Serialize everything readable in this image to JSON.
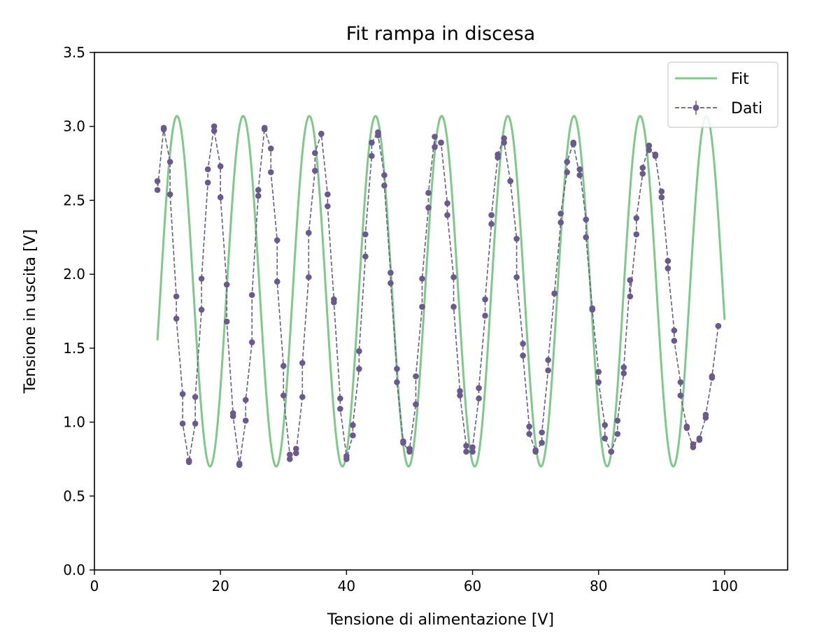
{
  "chart_data": {
    "type": "line",
    "title": "Fit rampa in discesa",
    "xlabel": "Tensione di alimentazione [V]",
    "ylabel": "Tensione in uscita [V]",
    "xlim": [
      0,
      110
    ],
    "ylim": [
      0,
      3.5
    ],
    "xticks": [
      "0",
      "20",
      "40",
      "60",
      "80",
      "100"
    ],
    "yticks": [
      "0.0",
      "0.5",
      "1.0",
      "1.5",
      "2.0",
      "2.5",
      "3.0",
      "3.5"
    ],
    "grid": false,
    "legend_position": "top-right",
    "fit_model": {
      "domain": [
        10,
        100
      ],
      "offset": 1.885,
      "amplitude": 1.185,
      "period": 10.5,
      "peak_x": 13.1
    },
    "series": [
      {
        "name": "Fit",
        "style": "solid",
        "color": "#7fc88a"
      },
      {
        "name": "Dati",
        "style": "dashed-markers",
        "color": "#6a5a8c",
        "points": [
          [
            10,
            2.63
          ],
          [
            10,
            2.57
          ],
          [
            11,
            2.99
          ],
          [
            11,
            2.98
          ],
          [
            12,
            2.76
          ],
          [
            12,
            2.54
          ],
          [
            13,
            1.85
          ],
          [
            13,
            1.7
          ],
          [
            14,
            1.19
          ],
          [
            14,
            0.99
          ],
          [
            15,
            0.73
          ],
          [
            15,
            0.74
          ],
          [
            16,
            0.99
          ],
          [
            16,
            1.17
          ],
          [
            17,
            1.76
          ],
          [
            17,
            1.97
          ],
          [
            18,
            2.62
          ],
          [
            18,
            2.71
          ],
          [
            19,
            3.0
          ],
          [
            19,
            2.97
          ],
          [
            20,
            2.73
          ],
          [
            20,
            2.52
          ],
          [
            21,
            1.93
          ],
          [
            21,
            1.68
          ],
          [
            22,
            1.06
          ],
          [
            22,
            1.04
          ],
          [
            23,
            0.72
          ],
          [
            23,
            0.71
          ],
          [
            24,
            1.01
          ],
          [
            24,
            1.15
          ],
          [
            25,
            1.54
          ],
          [
            25,
            1.86
          ],
          [
            26,
            2.53
          ],
          [
            26,
            2.57
          ],
          [
            27,
            2.99
          ],
          [
            27,
            2.98
          ],
          [
            28,
            2.85
          ],
          [
            28,
            2.69
          ],
          [
            29,
            2.23
          ],
          [
            29,
            1.95
          ],
          [
            30,
            1.38
          ],
          [
            30,
            1.18
          ],
          [
            31,
            0.78
          ],
          [
            31,
            0.75
          ],
          [
            32,
            0.82
          ],
          [
            32,
            0.79
          ],
          [
            33,
            1.17
          ],
          [
            33,
            1.4
          ],
          [
            34,
            1.98
          ],
          [
            34,
            2.28
          ],
          [
            35,
            2.7
          ],
          [
            35,
            2.82
          ],
          [
            36,
            2.95
          ],
          [
            36,
            2.95
          ],
          [
            37,
            2.54
          ],
          [
            37,
            2.46
          ],
          [
            38,
            1.83
          ],
          [
            38,
            1.81
          ],
          [
            39,
            1.16
          ],
          [
            39,
            1.09
          ],
          [
            40,
            0.77
          ],
          [
            40,
            0.75
          ],
          [
            41,
            0.91
          ],
          [
            41,
            0.98
          ],
          [
            42,
            1.36
          ],
          [
            42,
            1.48
          ],
          [
            43,
            2.12
          ],
          [
            43,
            2.27
          ],
          [
            44,
            2.8
          ],
          [
            44,
            2.89
          ],
          [
            45,
            2.96
          ],
          [
            45,
            2.94
          ],
          [
            46,
            2.67
          ],
          [
            46,
            2.6
          ],
          [
            47,
            2.01
          ],
          [
            47,
            1.94
          ],
          [
            48,
            1.36
          ],
          [
            48,
            1.27
          ],
          [
            49,
            0.87
          ],
          [
            49,
            0.86
          ],
          [
            50,
            0.8
          ],
          [
            50,
            0.82
          ],
          [
            51,
            1.12
          ],
          [
            51,
            1.31
          ],
          [
            52,
            1.78
          ],
          [
            52,
            1.97
          ],
          [
            53,
            2.45
          ],
          [
            53,
            2.55
          ],
          [
            54,
            2.93
          ],
          [
            54,
            2.86
          ],
          [
            55,
            2.89
          ],
          [
            55,
            2.89
          ],
          [
            56,
            2.48
          ],
          [
            56,
            2.4
          ],
          [
            57,
            1.98
          ],
          [
            57,
            1.78
          ],
          [
            58,
            1.21
          ],
          [
            58,
            1.18
          ],
          [
            59,
            0.84
          ],
          [
            59,
            0.8
          ],
          [
            60,
            0.8
          ],
          [
            60,
            0.83
          ],
          [
            61,
            1.16
          ],
          [
            61,
            1.23
          ],
          [
            62,
            1.72
          ],
          [
            62,
            1.83
          ],
          [
            63,
            2.34
          ],
          [
            63,
            2.4
          ],
          [
            64,
            2.79
          ],
          [
            64,
            2.81
          ],
          [
            65,
            2.92
          ],
          [
            65,
            2.89
          ],
          [
            66,
            2.63
          ],
          [
            66,
            2.63
          ],
          [
            67,
            2.24
          ],
          [
            67,
            1.98
          ],
          [
            68,
            1.53
          ],
          [
            68,
            1.45
          ],
          [
            69,
            0.97
          ],
          [
            69,
            0.92
          ],
          [
            70,
            0.81
          ],
          [
            70,
            0.8
          ],
          [
            71,
            0.86
          ],
          [
            71,
            0.93
          ],
          [
            72,
            1.35
          ],
          [
            72,
            1.42
          ],
          [
            73,
            1.87
          ],
          [
            73,
            1.87
          ],
          [
            74,
            2.35
          ],
          [
            74,
            2.41
          ],
          [
            75,
            2.69
          ],
          [
            75,
            2.76
          ],
          [
            76,
            2.89
          ],
          [
            76,
            2.88
          ],
          [
            77,
            2.67
          ],
          [
            77,
            2.71
          ],
          [
            78,
            2.37
          ],
          [
            78,
            2.25
          ],
          [
            79,
            1.77
          ],
          [
            79,
            1.76
          ],
          [
            80,
            1.34
          ],
          [
            80,
            1.27
          ],
          [
            81,
            0.98
          ],
          [
            81,
            0.89
          ],
          [
            82,
            0.8
          ],
          [
            82,
            0.8
          ],
          [
            83,
            0.92
          ],
          [
            83,
            1.01
          ],
          [
            84,
            1.33
          ],
          [
            84,
            1.37
          ],
          [
            85,
            1.96
          ],
          [
            85,
            1.85
          ],
          [
            86,
            2.27
          ],
          [
            86,
            2.38
          ],
          [
            87,
            2.68
          ],
          [
            87,
            2.72
          ],
          [
            88,
            2.87
          ],
          [
            88,
            2.84
          ],
          [
            89,
            2.81
          ],
          [
            89,
            2.8
          ],
          [
            90,
            2.52
          ],
          [
            90,
            2.56
          ],
          [
            91,
            2.09
          ],
          [
            91,
            2.04
          ],
          [
            92,
            1.62
          ],
          [
            92,
            1.55
          ],
          [
            93,
            1.27
          ],
          [
            93,
            1.18
          ],
          [
            94,
            0.97
          ],
          [
            94,
            0.96
          ],
          [
            95,
            0.83
          ],
          [
            95,
            0.85
          ],
          [
            96,
            0.88
          ],
          [
            96,
            0.89
          ],
          [
            97,
            1.03
          ],
          [
            97,
            1.05
          ],
          [
            98,
            1.3
          ],
          [
            98,
            1.31
          ],
          [
            99,
            1.65
          ],
          [
            99,
            1.65
          ]
        ]
      }
    ]
  }
}
